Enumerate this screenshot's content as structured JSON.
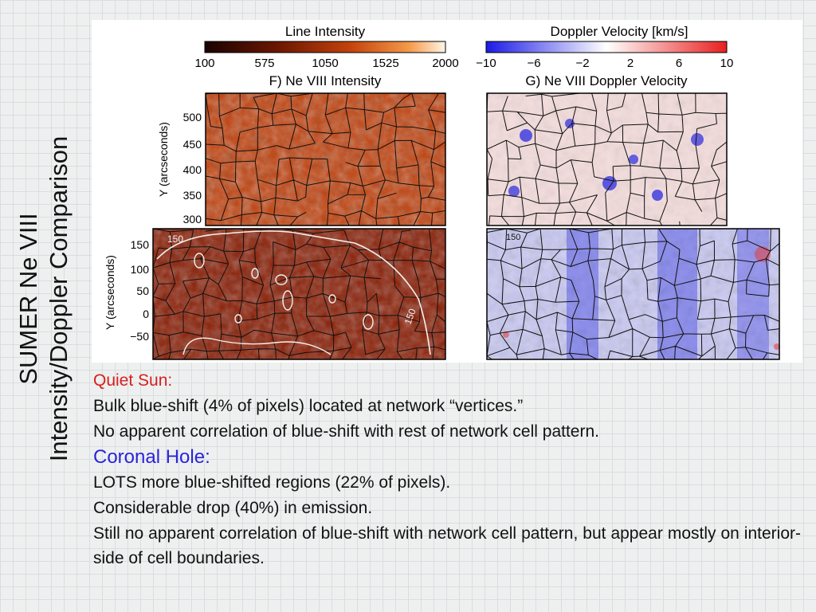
{
  "slide": {
    "title_line1": "SUMER Ne VIII",
    "title_line2": "Intensity/Doppler Comparison"
  },
  "figure": {
    "colorbar_intensity": {
      "title": "Line Intensity",
      "ticks": [
        "100",
        "575",
        "1050",
        "1525",
        "2000"
      ]
    },
    "colorbar_doppler": {
      "title": "Doppler Velocity [km/s]",
      "ticks": [
        "−10",
        "−6",
        "−2",
        "2",
        "6",
        "10"
      ]
    },
    "panel_f_title": "F) Ne VIII Intensity",
    "panel_g_title": "G) Ne VIII Doppler Velocity",
    "ylabel_top": "Y (arcseconds)",
    "ylabel_bottom": "Y (arcseconds)",
    "yticks_top": [
      "500",
      "450",
      "400",
      "350",
      "300"
    ],
    "yticks_bottom": [
      "150",
      "100",
      "50",
      "0",
      "−50"
    ],
    "contour_labels": [
      "150",
      "150",
      "150"
    ],
    "colors": {
      "intensity_dark": "#2a0600",
      "intensity_mid": "#c2410c",
      "intensity_bright": "#fff4e0",
      "doppler_blue": "#1f22e0",
      "doppler_white": "#ffffff",
      "doppler_red": "#e81f1f"
    }
  },
  "notes": {
    "quiet_sun_heading": "Quiet Sun:",
    "quiet_sun_line1": "Bulk blue-shift (4% of pixels) located at network “vertices.”",
    "quiet_sun_line2": "No apparent correlation of blue-shift with rest of network cell pattern.",
    "coronal_hole_heading": "Coronal Hole:",
    "coronal_hole_line1": "LOTS more blue-shifted regions (22% of pixels).",
    "coronal_hole_line2": "Considerable drop (40%) in emission.",
    "coronal_hole_line3": "Still no apparent correlation of blue-shift with network cell pattern, but appear mostly on interior-side of cell boundaries."
  }
}
